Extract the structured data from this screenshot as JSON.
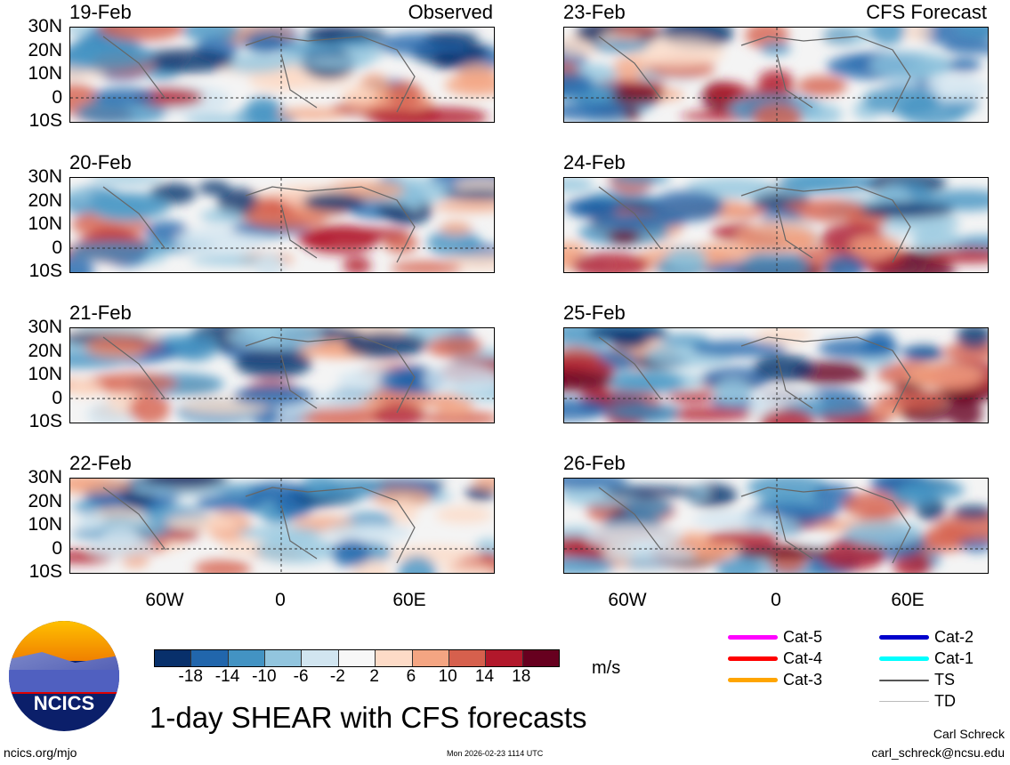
{
  "panels_left": [
    {
      "date": "19-Feb",
      "label": "Observed"
    },
    {
      "date": "20-Feb",
      "label": ""
    },
    {
      "date": "21-Feb",
      "label": ""
    },
    {
      "date": "22-Feb",
      "label": ""
    }
  ],
  "panels_right": [
    {
      "date": "23-Feb",
      "label": "CFS Forecast"
    },
    {
      "date": "24-Feb",
      "label": ""
    },
    {
      "date": "25-Feb",
      "label": ""
    },
    {
      "date": "26-Feb",
      "label": ""
    }
  ],
  "lat_labels": [
    "30N",
    "20N",
    "10N",
    "0",
    "10S"
  ],
  "lon_labels": [
    "60W",
    "0",
    "60E"
  ],
  "colorbar": {
    "colors": [
      "#08306b",
      "#2166ac",
      "#4393c3",
      "#92c5de",
      "#d1e5f0",
      "#f7f7f7",
      "#fddbc7",
      "#f4a582",
      "#d6604d",
      "#b2182b",
      "#67001f"
    ],
    "labels": [
      "-18",
      "-14",
      "-10",
      "-6",
      "-2",
      "2",
      "6",
      "10",
      "14",
      "18"
    ],
    "units": "m/s"
  },
  "legend": [
    {
      "label": "Cat-5",
      "color": "#ff00ff"
    },
    {
      "label": "Cat-4",
      "color": "#ff0000"
    },
    {
      "label": "Cat-3",
      "color": "#ffa500"
    },
    {
      "label": "Cat-2",
      "color": "#0000cc"
    },
    {
      "label": "Cat-1",
      "color": "#00ffff"
    },
    {
      "label": "TS",
      "color": "#555555"
    },
    {
      "label": "TD",
      "color": "#bbbbbb"
    }
  ],
  "title": "1-day SHEAR with CFS forecasts",
  "logo_text": "NCICS",
  "footer": {
    "left": "ncics.org/mjo",
    "center": "Mon 2026-02-23 1114 UTC",
    "author": "Carl Schreck",
    "email": "carl_schreck@ncsu.edu"
  }
}
